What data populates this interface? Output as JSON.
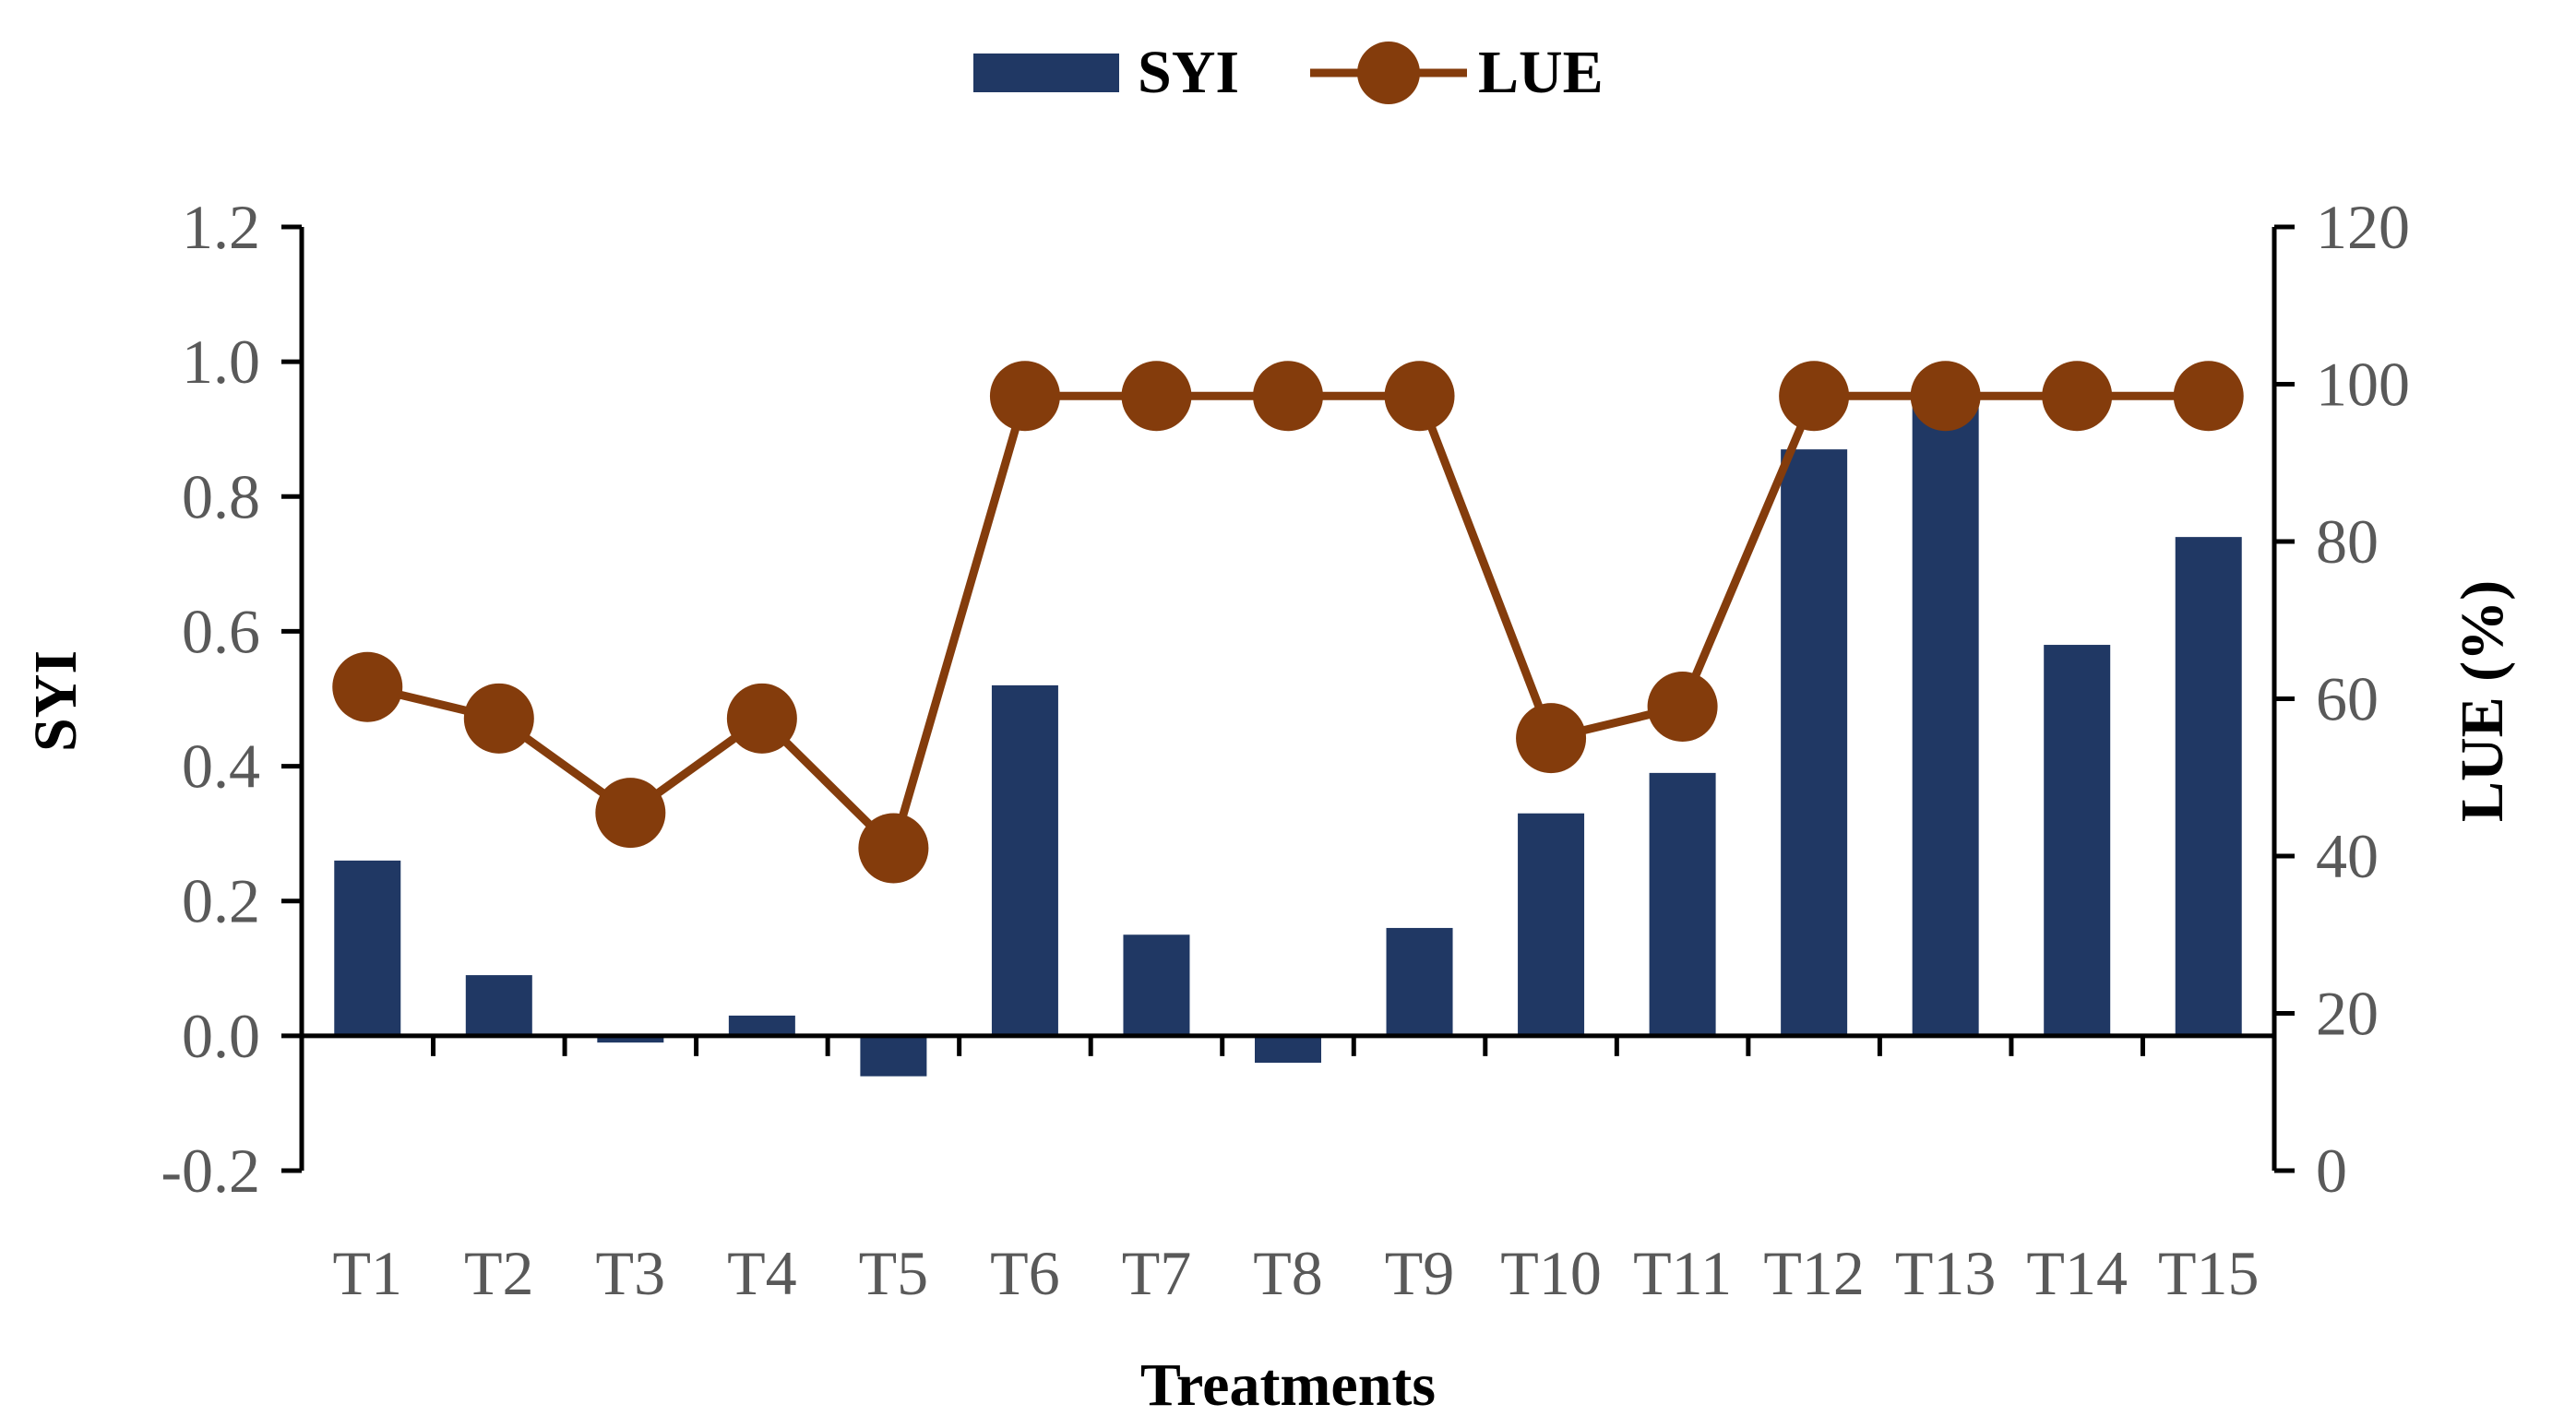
{
  "chart_data": {
    "type": "bar+line",
    "categories": [
      "T1",
      "T2",
      "T3",
      "T4",
      "T5",
      "T6",
      "T7",
      "T8",
      "T9",
      "T10",
      "T11",
      "T12",
      "T13",
      "T14",
      "T15"
    ],
    "series": [
      {
        "name": "SYI",
        "type": "bar",
        "axis": "left",
        "color": "#203864",
        "values": [
          0.26,
          0.09,
          -0.01,
          0.03,
          -0.06,
          0.52,
          0.15,
          -0.04,
          0.16,
          0.33,
          0.39,
          0.87,
          0.96,
          0.58,
          0.74
        ]
      },
      {
        "name": "LUE",
        "type": "line",
        "axis": "right",
        "color": "#843C0C",
        "values": [
          61.5,
          57.5,
          45.5,
          57.5,
          41,
          98.5,
          98.5,
          98.5,
          98.5,
          55,
          59,
          98.5,
          98.5,
          98.5,
          98.5
        ]
      }
    ],
    "xlabel": "Treatments",
    "ylabel": "SYI",
    "y2label": "LUE (%)",
    "ylim": [
      -0.2,
      1.2
    ],
    "y2lim": [
      0,
      120
    ],
    "yticks": [
      "-0.2",
      "0.0",
      "0.2",
      "0.4",
      "0.6",
      "0.8",
      "1.0",
      "1.2"
    ],
    "y2ticks": [
      "0",
      "20",
      "40",
      "60",
      "80",
      "100",
      "120"
    ],
    "legend_position": "top-center",
    "grid": false
  }
}
